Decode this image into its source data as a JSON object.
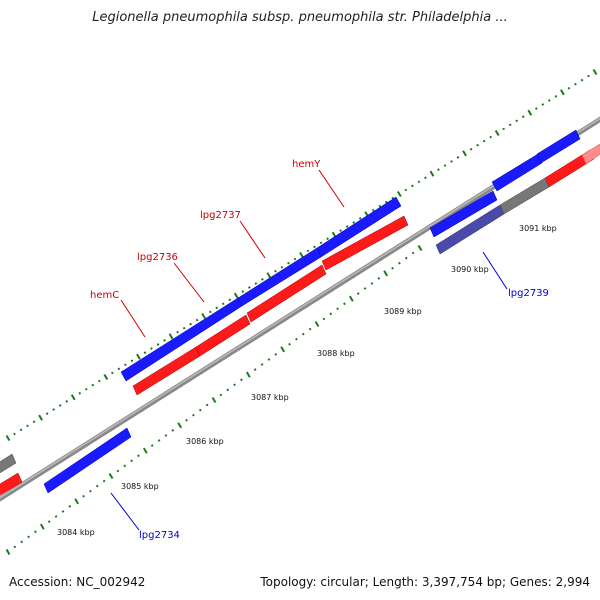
{
  "header": {
    "title": "Legionella pneumophila subsp. pneumophila str. Philadelphia ..."
  },
  "footer": {
    "accession": "Accession: NC_002942",
    "summary": "Topology: circular; Length: 3,397,754 bp; Genes: 2,994"
  },
  "colors": {
    "forward_gene": "#1a1aff",
    "reverse_gene": "#ff1a1a",
    "other_gene": "#777777",
    "backbone": "#8a8a8a",
    "tick_dot": "#1a7a1a",
    "tick_major": "#1a7a1a",
    "forward_label": "#cc0000",
    "reverse_label": "#0000cc"
  },
  "scale": {
    "labels": [
      "3084 kbp",
      "3085 kbp",
      "3086 kbp",
      "3087 kbp",
      "3088 kbp",
      "3089 kbp",
      "3090 kbp",
      "3091 kbp"
    ]
  },
  "gene_labels": [
    {
      "text": "hemC",
      "strand": "forward"
    },
    {
      "text": "lpg2736",
      "strand": "forward"
    },
    {
      "text": "lpg2737",
      "strand": "forward"
    },
    {
      "text": "hemY",
      "strand": "forward"
    },
    {
      "text": "lpg2734",
      "strand": "reverse"
    },
    {
      "text": "lpg2739",
      "strand": "reverse"
    }
  ]
}
